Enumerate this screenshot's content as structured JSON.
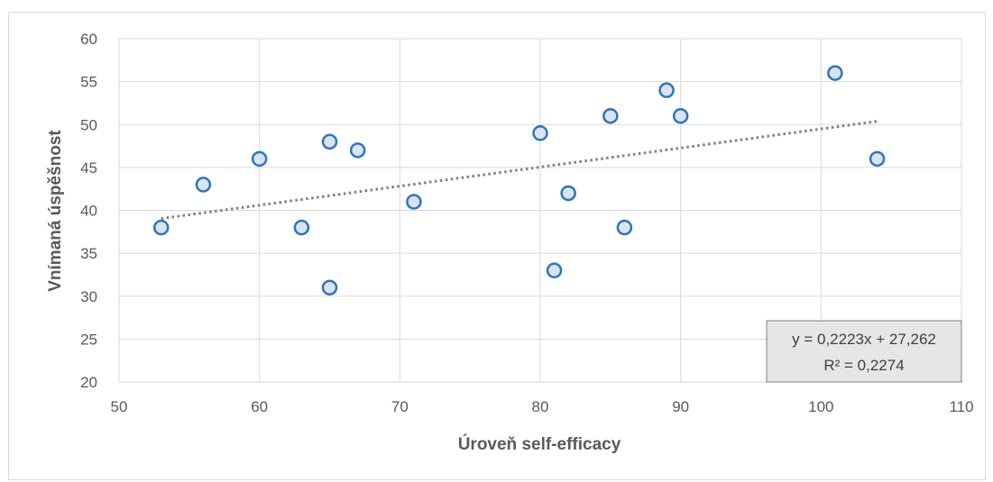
{
  "chart_data": {
    "type": "scatter",
    "xlabel": "Úroveň self-efficacy",
    "ylabel": "Vnímaná úspěšnost",
    "xlim": [
      50,
      110
    ],
    "ylim": [
      20,
      60
    ],
    "xticks": [
      50,
      60,
      70,
      80,
      90,
      100,
      110
    ],
    "yticks": [
      20,
      25,
      30,
      35,
      40,
      45,
      50,
      55,
      60
    ],
    "grid": true,
    "points": [
      {
        "x": 53,
        "y": 38
      },
      {
        "x": 56,
        "y": 43
      },
      {
        "x": 60,
        "y": 46
      },
      {
        "x": 63,
        "y": 38
      },
      {
        "x": 65,
        "y": 48
      },
      {
        "x": 65,
        "y": 31
      },
      {
        "x": 67,
        "y": 47
      },
      {
        "x": 71,
        "y": 41
      },
      {
        "x": 80,
        "y": 49
      },
      {
        "x": 81,
        "y": 33
      },
      {
        "x": 82,
        "y": 42
      },
      {
        "x": 85,
        "y": 51
      },
      {
        "x": 86,
        "y": 38
      },
      {
        "x": 89,
        "y": 54
      },
      {
        "x": 90,
        "y": 51
      },
      {
        "x": 101,
        "y": 56
      },
      {
        "x": 104,
        "y": 46
      }
    ],
    "trendline": {
      "type": "linear",
      "slope": 0.2223,
      "intercept": 27.262,
      "x_range": [
        53,
        104
      ],
      "equation": "y = 0,2223x + 27,262",
      "r_squared": "R² = 0,2274"
    },
    "colors": {
      "marker_fill": "#dae3f3",
      "marker_stroke": "#2e75b6",
      "trendline": "#7f7f7f",
      "grid": "#d9d9d9",
      "label_box_fill": "#e7e6e6"
    }
  }
}
